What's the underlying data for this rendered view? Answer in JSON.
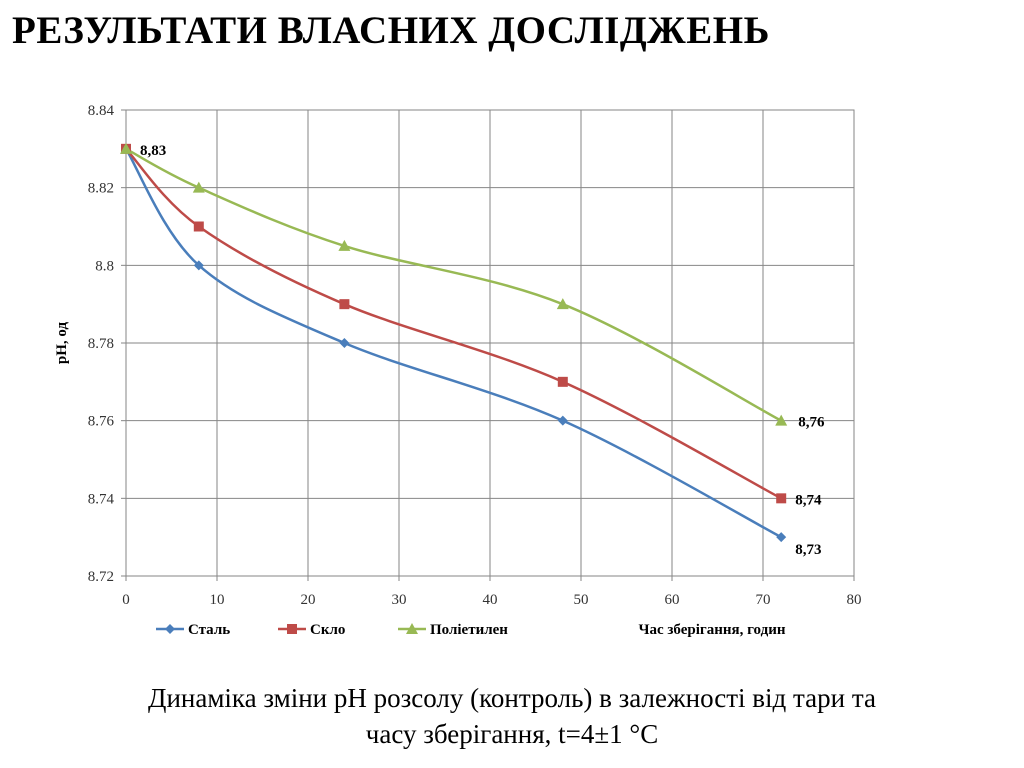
{
  "slide": {
    "title": "РЕЗУЛЬТАТИ  ВЛАСНИХ ДОСЛІДЖЕНЬ",
    "caption_line1": "Динаміка зміни рН розсолу (контроль) в залежності від тари та",
    "caption_line2": "часу зберігання, t=4±1 °С"
  },
  "chart_data": {
    "type": "line",
    "title": "",
    "xlabel": "Час зберігання, годин",
    "ylabel": "рН, од",
    "xlim": [
      0,
      80
    ],
    "ylim": [
      8.72,
      8.84
    ],
    "xticks": [
      "0",
      "10",
      "20",
      "30",
      "40",
      "50",
      "60",
      "70",
      "80"
    ],
    "yticks": [
      "8.72",
      "8.74",
      "8.76",
      "8.78",
      "8.8",
      "8.82",
      "8.84"
    ],
    "grid": true,
    "legend_position": "bottom-left",
    "smooth": true,
    "x": [
      0,
      8,
      24,
      48,
      72
    ],
    "series": [
      {
        "name": "Сталь",
        "values": [
          8.83,
          8.8,
          8.78,
          8.76,
          8.73
        ],
        "color": "#4a7ebb",
        "marker": "diamond"
      },
      {
        "name": "Скло",
        "values": [
          8.83,
          8.81,
          8.79,
          8.77,
          8.74
        ],
        "color": "#be4b48",
        "marker": "square"
      },
      {
        "name": "Поліетилен",
        "values": [
          8.83,
          8.82,
          8.805,
          8.79,
          8.76
        ],
        "color": "#98b954",
        "marker": "triangle"
      }
    ],
    "annotations": [
      {
        "text": "8,83",
        "x": 0,
        "y": 8.83
      },
      {
        "text": "8,76",
        "x": 72,
        "y": 8.76
      },
      {
        "text": "8,74",
        "x": 72,
        "y": 8.74
      },
      {
        "text": "8,73",
        "x": 72,
        "y": 8.73
      }
    ]
  }
}
